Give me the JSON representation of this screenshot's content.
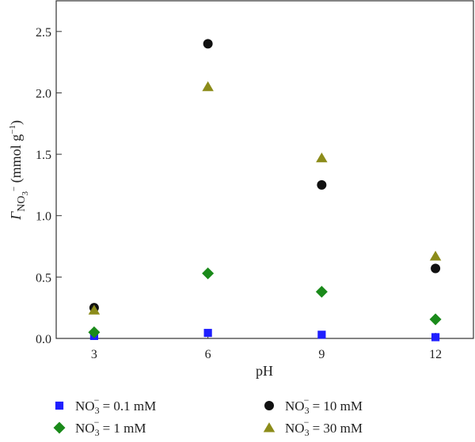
{
  "chart_data": {
    "type": "scatter",
    "xlabel": "pH",
    "ylabel": {
      "main": "Γ",
      "sub": "NO",
      "subsub": "3",
      "sup": "−",
      "unit_open": " (mmol g",
      "unit_sup": "−1",
      "unit_close": ")"
    },
    "x_ticks": [
      3,
      6,
      9,
      12
    ],
    "y_ticks": [
      "0.0",
      "0.5",
      "1.0",
      "1.5",
      "2.0",
      "2.5"
    ],
    "xlim": [
      2,
      13
    ],
    "ylim": [
      0,
      2.75
    ],
    "legend_position": "bottom",
    "series": [
      {
        "name_species": "NO",
        "name_sub": "3",
        "name_sup": "−",
        "name_value": " = 0.1 mM",
        "marker": "square",
        "color": "#1f1fff",
        "points": [
          [
            3,
            0.02
          ],
          [
            6,
            0.045
          ],
          [
            9,
            0.03
          ],
          [
            12,
            0.01
          ]
        ]
      },
      {
        "name_species": "NO",
        "name_sub": "3",
        "name_sup": "−",
        "name_value": " = 1 mM",
        "marker": "diamond",
        "color": "#1a8a1a",
        "points": [
          [
            3,
            0.05
          ],
          [
            6,
            0.53
          ],
          [
            9,
            0.38
          ],
          [
            12,
            0.155
          ]
        ]
      },
      {
        "name_species": "NO",
        "name_sub": "3",
        "name_sup": "−",
        "name_value": " = 10 mM",
        "marker": "circle",
        "color": "#111111",
        "points": [
          [
            3,
            0.25
          ],
          [
            6,
            2.4
          ],
          [
            9,
            1.25
          ],
          [
            12,
            0.57
          ]
        ]
      },
      {
        "name_species": "NO",
        "name_sub": "3",
        "name_sup": "−",
        "name_value": " = 30 mM",
        "marker": "triangle",
        "color": "#8c8c1a",
        "points": [
          [
            3,
            0.23
          ],
          [
            6,
            2.05
          ],
          [
            9,
            1.47
          ],
          [
            12,
            0.67
          ]
        ]
      }
    ]
  }
}
